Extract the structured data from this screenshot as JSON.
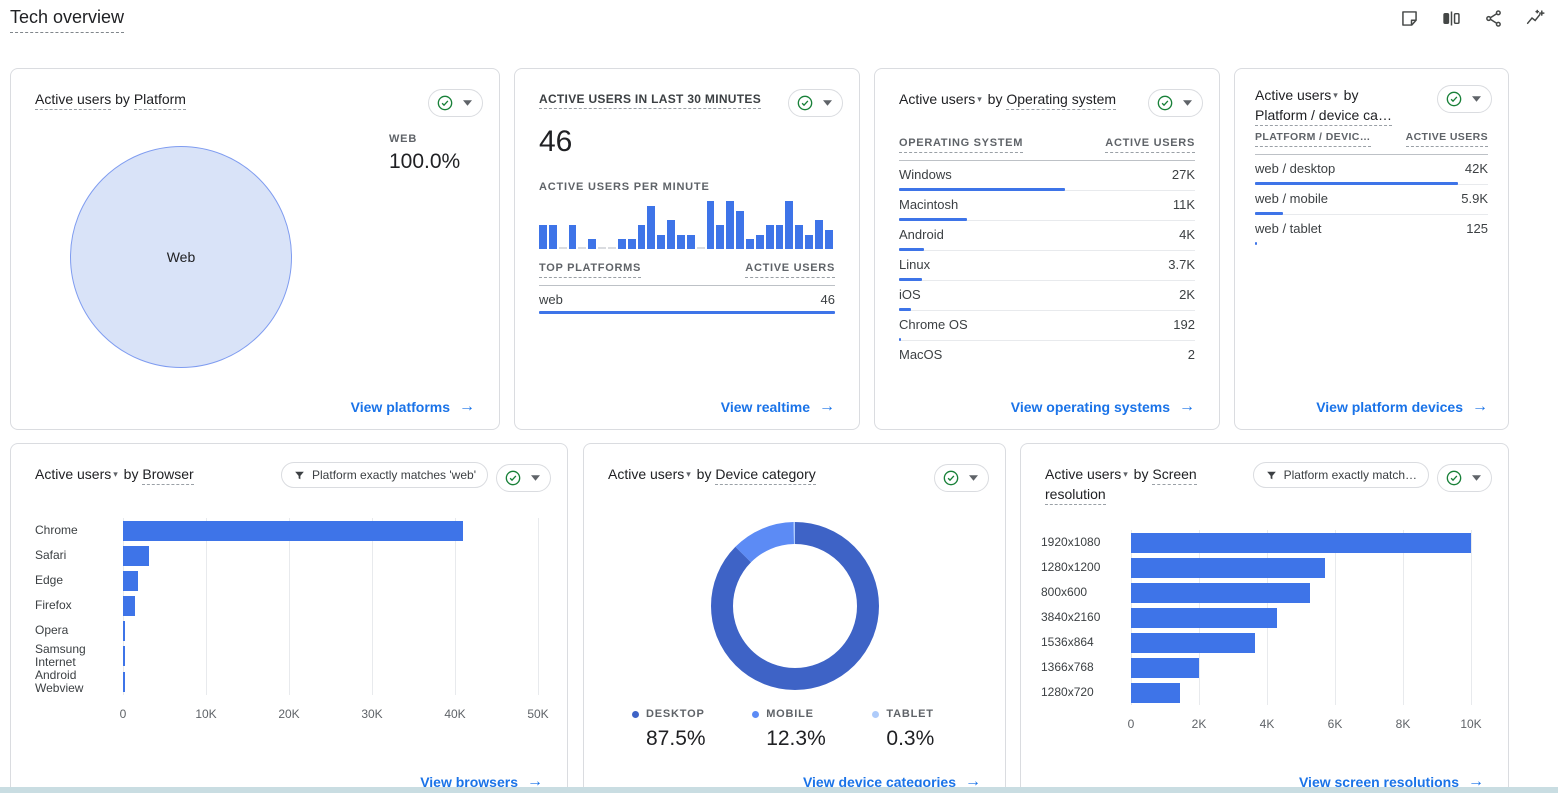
{
  "page": {
    "title": "Tech overview"
  },
  "icons": {
    "metric_caret": "▾",
    "link_arrow": "→"
  },
  "toolbar": {
    "icons": [
      "note",
      "comparisons",
      "share",
      "insights"
    ]
  },
  "colors": {
    "bar_blue": "#3e74e8",
    "link_blue": "#1a73e8",
    "pie_fill": "#d9e3f8",
    "pie_stroke": "#7f9cf0",
    "check_green": "#188038",
    "donut_desktop": "#3e63c6",
    "donut_mobile": "#5c8bf5",
    "donut_tablet": "#aecbfa"
  },
  "cards": {
    "platform": {
      "title_metric": "Active users",
      "title_by": "by",
      "title_dim": "Platform",
      "metric_label": "WEB",
      "metric_value": "100.0%",
      "pie_label": "Web",
      "link": "View platforms"
    },
    "realtime": {
      "heading": "ACTIVE USERS IN LAST 30 MINUTES",
      "count": "46",
      "per_minute_label": "ACTIVE USERS PER MINUTE",
      "table": {
        "col1": "TOP PLATFORMS",
        "col2": "ACTIVE USERS",
        "rows": [
          {
            "label": "web",
            "value": "46",
            "bar_pct": 100
          }
        ]
      },
      "link": "View realtime"
    },
    "os": {
      "title_metric": "Active users",
      "title_by": "by",
      "title_dim": "Operating system",
      "table": {
        "col1": "OPERATING SYSTEM",
        "col2": "ACTIVE USERS",
        "rows": [
          {
            "label": "Windows",
            "value": "27K",
            "bar_pct": 56
          },
          {
            "label": "Macintosh",
            "value": "11K",
            "bar_pct": 23
          },
          {
            "label": "Android",
            "value": "4K",
            "bar_pct": 8.3
          },
          {
            "label": "Linux",
            "value": "3.7K",
            "bar_pct": 7.7
          },
          {
            "label": "iOS",
            "value": "2K",
            "bar_pct": 4.2
          },
          {
            "label": "Chrome OS",
            "value": "192",
            "bar_pct": 0.6
          },
          {
            "label": "MacOS",
            "value": "2",
            "bar_pct": 0
          }
        ]
      },
      "link": "View operating systems"
    },
    "platform_device": {
      "title_metric": "Active users",
      "title_by": "by",
      "title_dim": "Platform / device ca…",
      "table": {
        "col1": "PLATFORM / DEVIC…",
        "col2": "ACTIVE USERS",
        "rows": [
          {
            "label": "web / desktop",
            "value": "42K",
            "bar_pct": 87
          },
          {
            "label": "web / mobile",
            "value": "5.9K",
            "bar_pct": 12
          },
          {
            "label": "web / tablet",
            "value": "125",
            "bar_pct": 0.7
          }
        ]
      },
      "link": "View platform devices"
    },
    "browser": {
      "title_metric": "Active users",
      "title_by": "by",
      "title_dim": "Browser",
      "chip": "Platform exactly matches 'web'",
      "link": "View browsers"
    },
    "device_category": {
      "title_metric": "Active users",
      "title_by": "by",
      "title_dim": "Device category",
      "legend": [
        {
          "label": "DESKTOP",
          "pct": "87.5%",
          "color": "#3e63c6"
        },
        {
          "label": "MOBILE",
          "pct": "12.3%",
          "color": "#5c8bf5"
        },
        {
          "label": "TABLET",
          "pct": "0.3%",
          "color": "#aecbfa"
        }
      ],
      "link": "View device categories"
    },
    "screen_resolution": {
      "title_metric": "Active users",
      "title_by": "by",
      "title_dim": "Screen resolution",
      "chip": "Platform exactly match…",
      "link": "View screen resolutions"
    }
  },
  "chart_data": [
    {
      "id": "platform_pie",
      "type": "pie",
      "title": "Active users by Platform",
      "categories": [
        "Web"
      ],
      "values": [
        100.0
      ],
      "labels": [
        "WEB 100.0%"
      ],
      "colors": [
        "#d9e3f8"
      ]
    },
    {
      "id": "minute_bars",
      "type": "bar",
      "title": "Active users per minute",
      "xlabel": "last 30 minutes",
      "ylim": [
        0,
        10
      ],
      "values": [
        5,
        5,
        0,
        5,
        0,
        2,
        0,
        0,
        2,
        2,
        5,
        9,
        3,
        6,
        3,
        3,
        0,
        10,
        5,
        10,
        8,
        2,
        3,
        5,
        5,
        10,
        5,
        3,
        6,
        4
      ]
    },
    {
      "id": "os_table",
      "type": "table",
      "title": "Active users by Operating system",
      "columns": [
        "Operating system",
        "Active users"
      ],
      "rows": [
        [
          "Windows",
          "27K"
        ],
        [
          "Macintosh",
          "11K"
        ],
        [
          "Android",
          "4K"
        ],
        [
          "Linux",
          "3.7K"
        ],
        [
          "iOS",
          "2K"
        ],
        [
          "Chrome OS",
          "192"
        ],
        [
          "MacOS",
          "2"
        ]
      ]
    },
    {
      "id": "platform_device_table",
      "type": "table",
      "title": "Active users by Platform / device category",
      "columns": [
        "Platform / device category",
        "Active users"
      ],
      "rows": [
        [
          "web / desktop",
          "42K"
        ],
        [
          "web / mobile",
          "5.9K"
        ],
        [
          "web / tablet",
          "125"
        ]
      ]
    },
    {
      "id": "browser_bars",
      "type": "bar",
      "orientation": "horizontal",
      "title": "Active users by Browser",
      "grid": true,
      "xlim": [
        0,
        50000
      ],
      "categories": [
        "Chrome",
        "Safari",
        "Edge",
        "Firefox",
        "Opera",
        "Samsung Internet",
        "Android Webview"
      ],
      "values": [
        41000,
        3100,
        1800,
        1400,
        250,
        90,
        70
      ],
      "ticks": [
        {
          "label": "0",
          "value": 0
        },
        {
          "label": "10K",
          "value": 10000
        },
        {
          "label": "20K",
          "value": 20000
        },
        {
          "label": "30K",
          "value": 30000
        },
        {
          "label": "40K",
          "value": 40000
        },
        {
          "label": "50K",
          "value": 50000
        }
      ]
    },
    {
      "id": "device_donut",
      "type": "pie",
      "title": "Active users by Device category",
      "categories": [
        "Desktop",
        "Mobile",
        "Tablet"
      ],
      "values": [
        87.5,
        12.3,
        0.3
      ],
      "colors": [
        "#3e63c6",
        "#5c8bf5",
        "#aecbfa"
      ],
      "legend_position": "bottom"
    },
    {
      "id": "resolution_bars",
      "type": "bar",
      "orientation": "horizontal",
      "title": "Active users by Screen resolution",
      "grid": true,
      "xlim": [
        0,
        10000
      ],
      "categories": [
        "1920x1080",
        "1280x1200",
        "800x600",
        "3840x2160",
        "1536x864",
        "1366x768",
        "1280x720"
      ],
      "values": [
        10000,
        5700,
        5250,
        4300,
        3650,
        2000,
        1430
      ],
      "ticks": [
        {
          "label": "0",
          "value": 0
        },
        {
          "label": "2K",
          "value": 2000
        },
        {
          "label": "4K",
          "value": 4000
        },
        {
          "label": "6K",
          "value": 6000
        },
        {
          "label": "8K",
          "value": 8000
        },
        {
          "label": "10K",
          "value": 10000
        }
      ]
    }
  ]
}
